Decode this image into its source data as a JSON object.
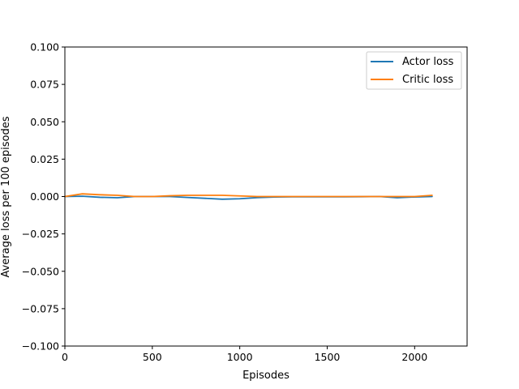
{
  "chart_data": {
    "type": "line",
    "xlabel": "Episodes",
    "ylabel": "Average loss per 100 episodes",
    "xlim": [
      0,
      2300
    ],
    "ylim": [
      -0.1,
      0.1
    ],
    "xticks": [
      0,
      500,
      1000,
      1500,
      2000
    ],
    "yticks": [
      -0.1,
      -0.075,
      -0.05,
      -0.025,
      0.0,
      0.025,
      0.05,
      0.075,
      0.1
    ],
    "xtick_labels": [
      "0",
      "500",
      "1000",
      "1500",
      "2000"
    ],
    "ytick_labels": [
      "−0.100",
      "−0.075",
      "−0.050",
      "−0.025",
      "0.000",
      "0.025",
      "0.050",
      "0.075",
      "0.100"
    ],
    "grid": false,
    "legend_position": "top-right",
    "x": [
      0,
      100,
      200,
      300,
      400,
      500,
      600,
      700,
      800,
      900,
      1000,
      1100,
      1200,
      1300,
      1400,
      1500,
      1600,
      1700,
      1800,
      1900,
      2000,
      2100
    ],
    "series": [
      {
        "name": "Actor loss",
        "color": "#1f77b4",
        "values": [
          0.0,
          0.0002,
          -0.0005,
          -0.0008,
          0.0,
          0.0,
          0.0,
          -0.0006,
          -0.0012,
          -0.0018,
          -0.0015,
          -0.0007,
          -0.0003,
          -0.0002,
          -0.0002,
          -0.0002,
          -0.0002,
          -0.0001,
          0.0,
          -0.0008,
          -0.0003,
          0.0
        ]
      },
      {
        "name": "Critic loss",
        "color": "#ff7f0e",
        "values": [
          0.0,
          0.0018,
          0.0012,
          0.0008,
          0.0,
          0.0,
          0.0005,
          0.0008,
          0.0008,
          0.0008,
          0.0004,
          0.0,
          0.0,
          0.0,
          0.0,
          0.0,
          0.0,
          0.0,
          0.0,
          0.0,
          0.0,
          0.0008
        ]
      }
    ]
  }
}
